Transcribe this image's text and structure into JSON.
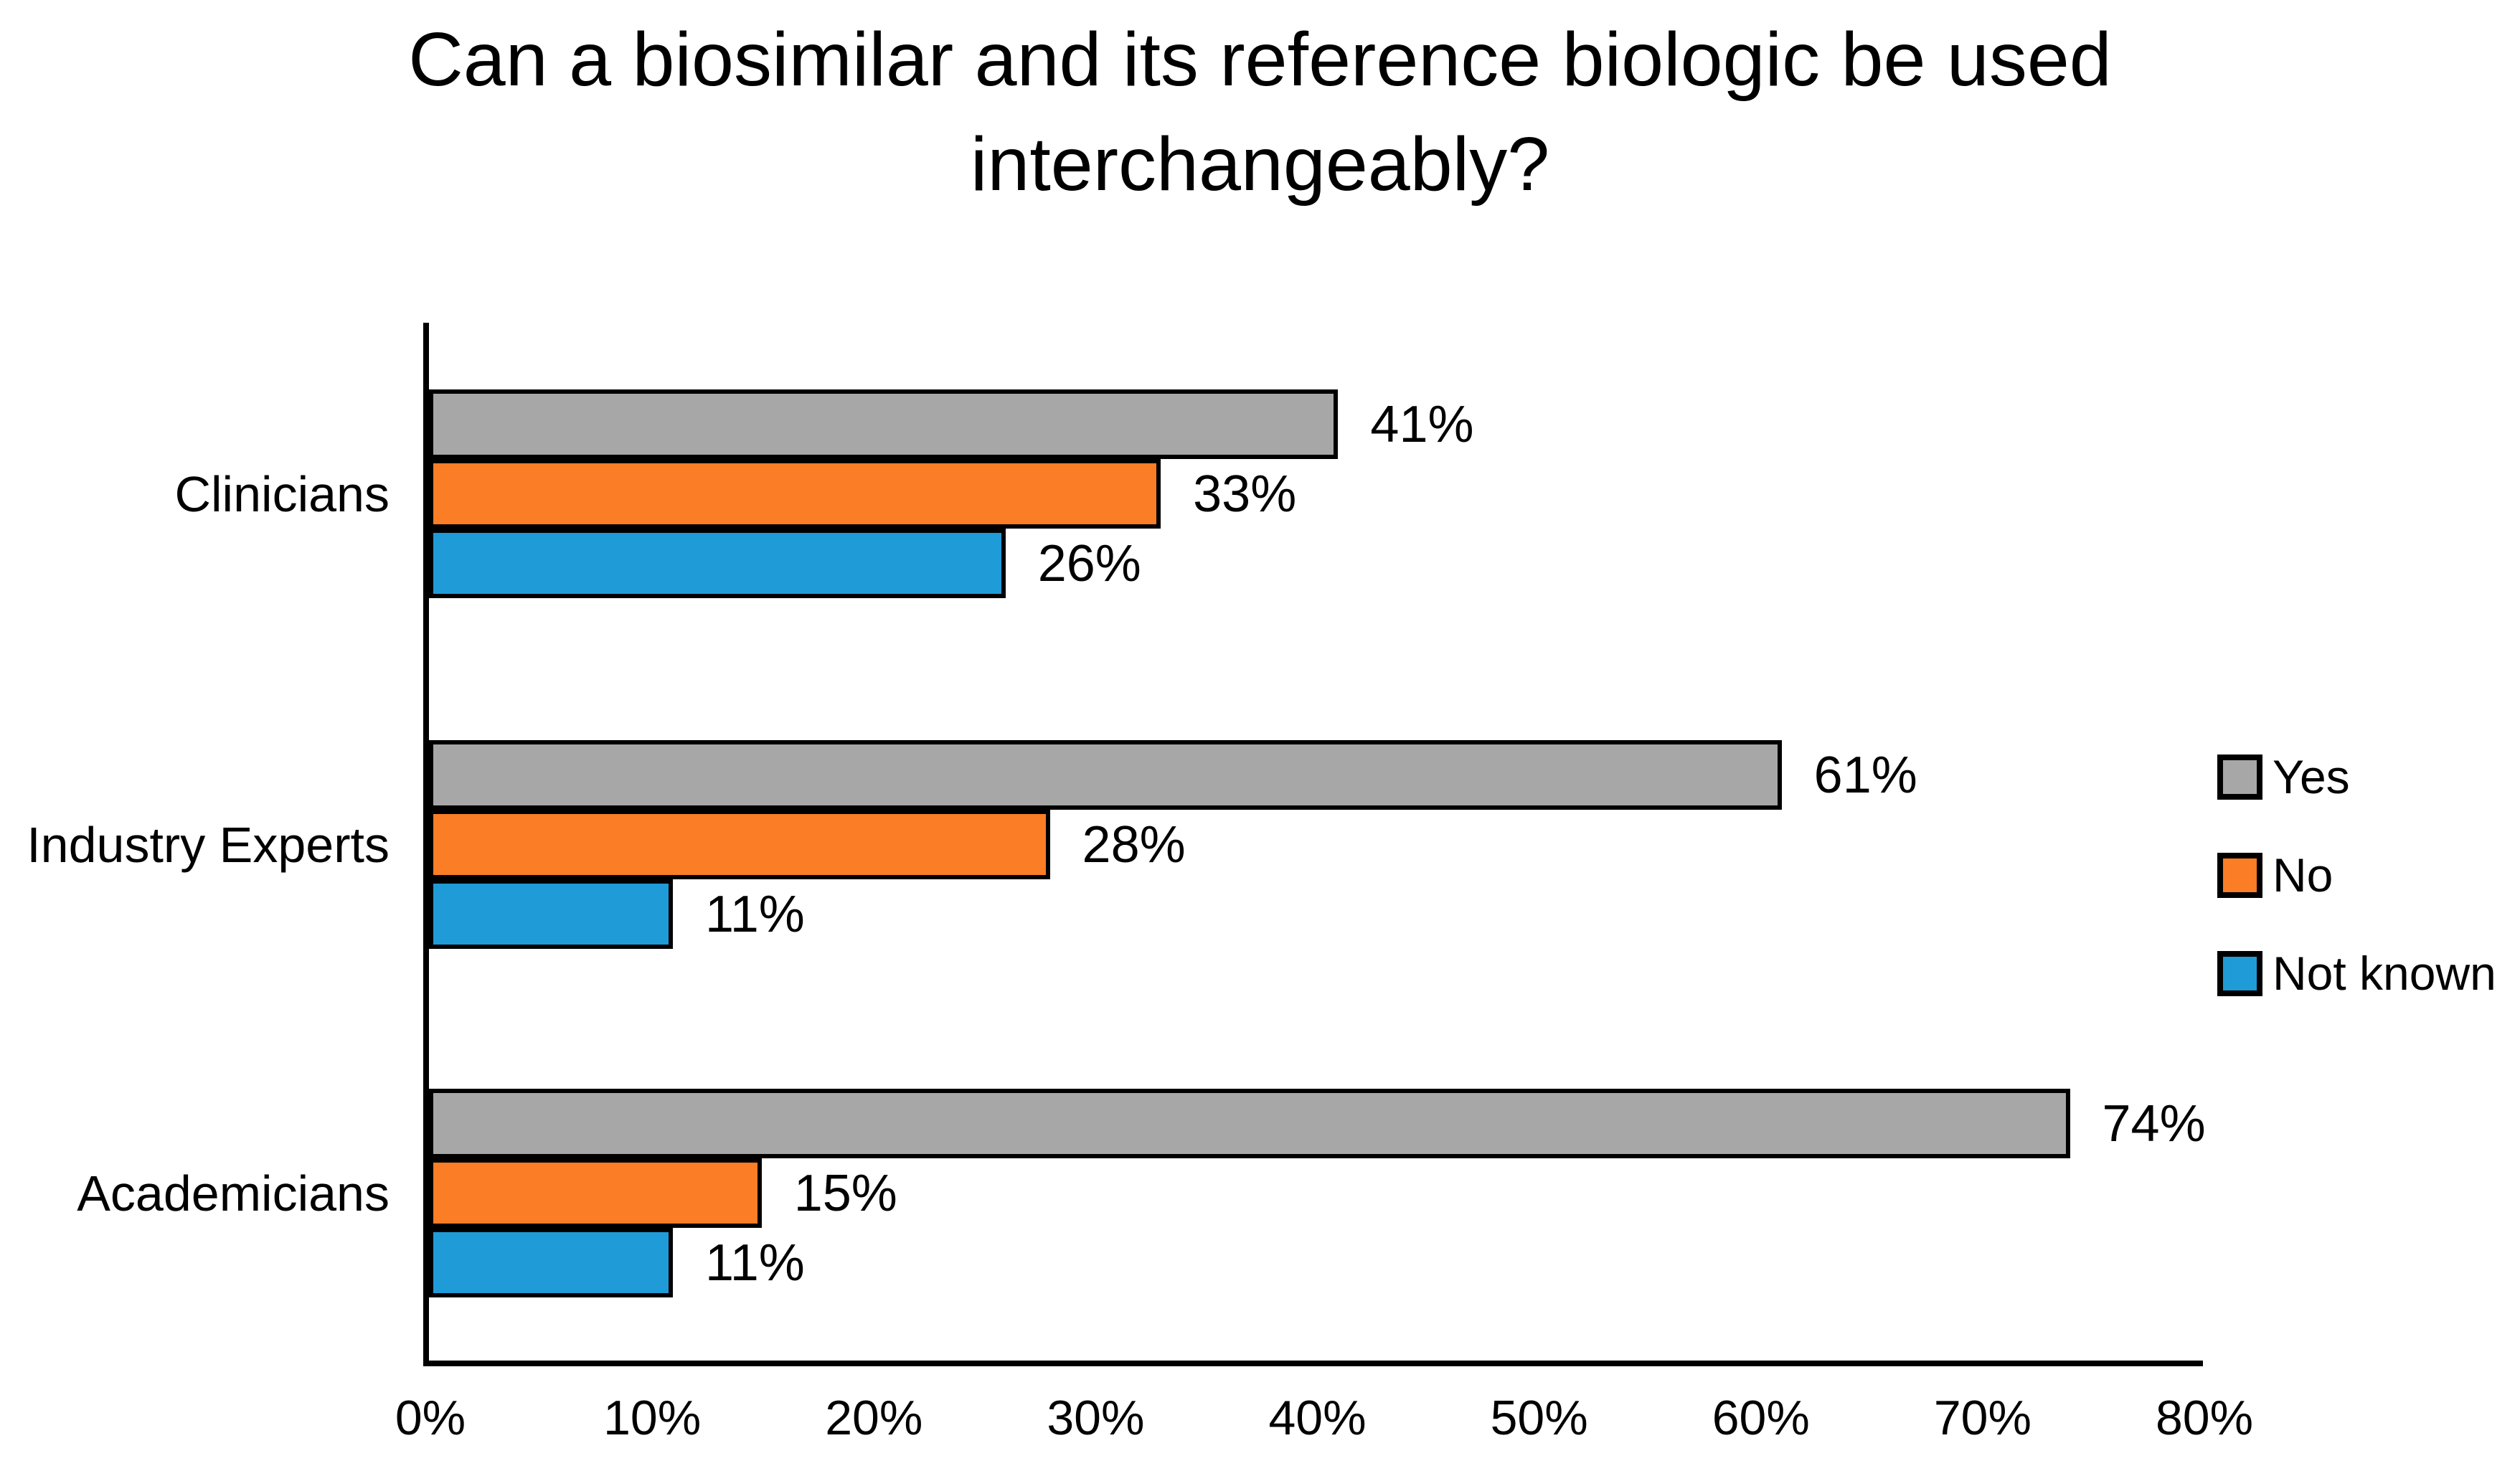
{
  "chart_data": {
    "type": "bar",
    "orientation": "horizontal",
    "title": "Can a biosimilar and its reference biologic be used interchangeably?",
    "title_lines": [
      "Can a biosimilar and its reference biologic be used",
      "interchangeably?"
    ],
    "categories": [
      "Clinicians",
      "Industry Experts",
      "Academicians"
    ],
    "series": [
      {
        "name": "Yes",
        "color": "#A7A7A7",
        "values": [
          41,
          61,
          74
        ]
      },
      {
        "name": "No",
        "color": "#FB7D25",
        "values": [
          33,
          28,
          15
        ]
      },
      {
        "name": "Not known",
        "color": "#1F9BD8",
        "values": [
          26,
          11,
          11
        ]
      }
    ],
    "value_suffix": "%",
    "data_labels": true,
    "x_ticks": [
      "0%",
      "10%",
      "20%",
      "30%",
      "40%",
      "50%",
      "60%",
      "70%",
      "80%"
    ],
    "xlim": [
      0,
      80
    ],
    "grid": false,
    "legend_position": "right",
    "bar_border_color": "#000000",
    "background_color": "#FFFFFF",
    "text_color": "#000000"
  }
}
